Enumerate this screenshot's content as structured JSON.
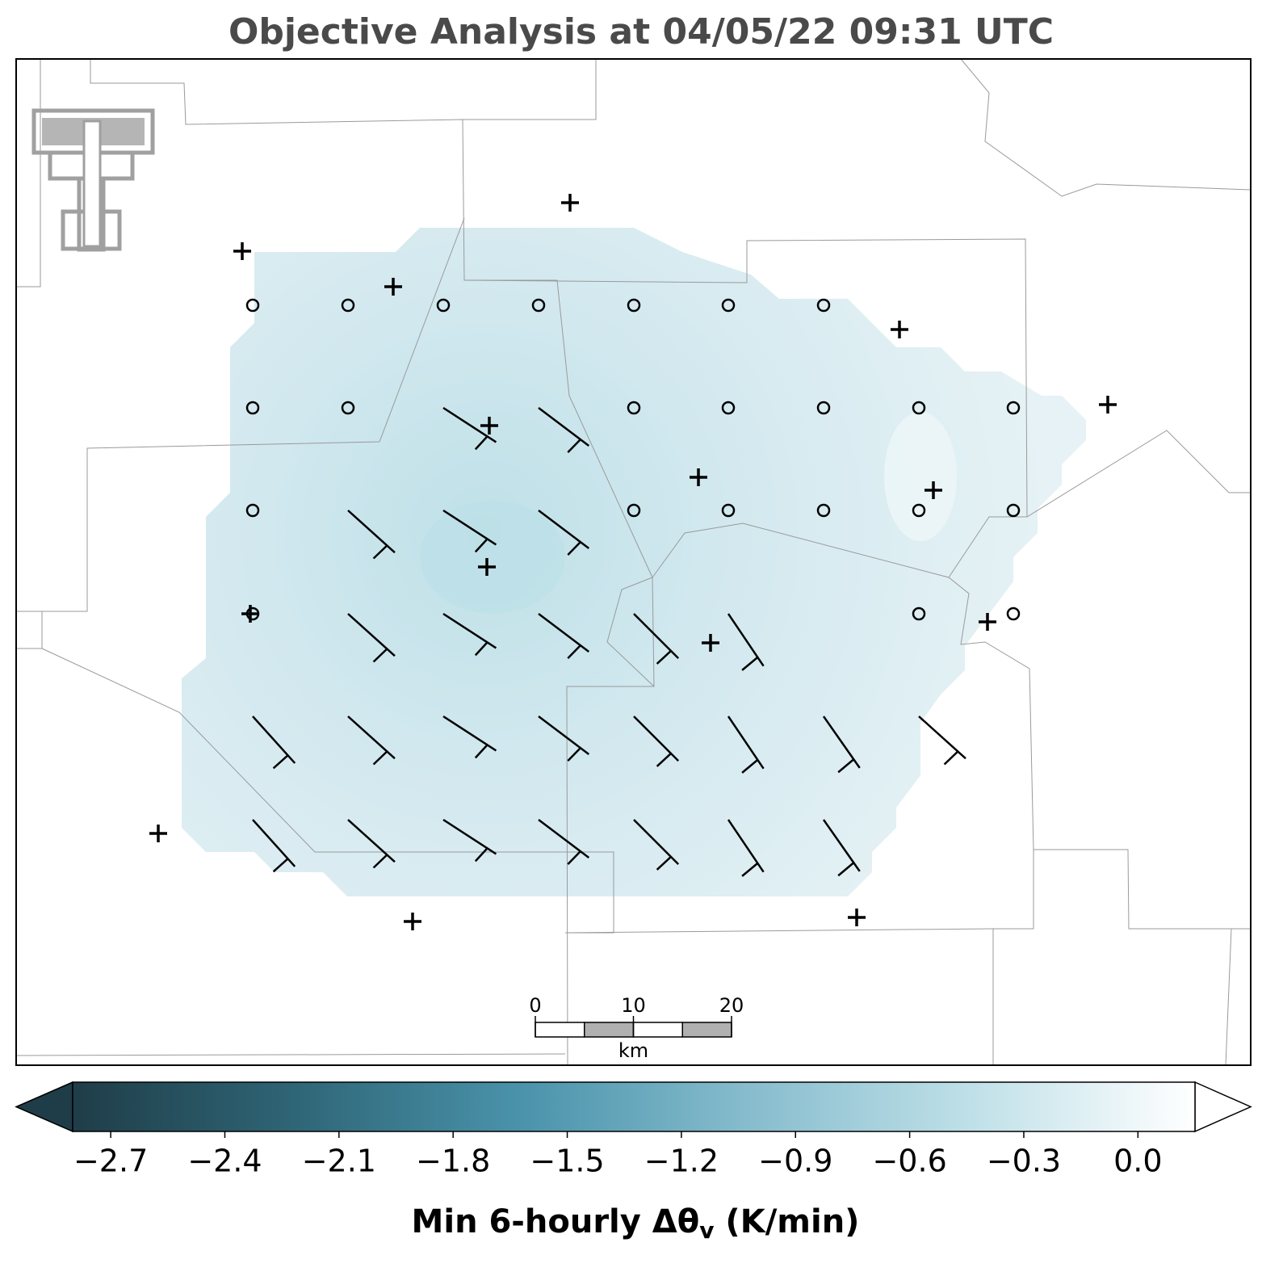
{
  "title": "Objective Analysis at 04/05/22 09:31 UTC",
  "colorbar": {
    "lim": [
      -2.8,
      0.15
    ],
    "colors": [
      "#1f3d48",
      "#2f6677",
      "#4a93ab",
      "#86bccd",
      "#bfe0e8",
      "#ffffff"
    ],
    "ticks": [
      {
        "value": -2.7,
        "label": "−2.7"
      },
      {
        "value": -2.4,
        "label": "−2.4"
      },
      {
        "value": -2.1,
        "label": "−2.1"
      },
      {
        "value": -1.8,
        "label": "−1.8"
      },
      {
        "value": -1.5,
        "label": "−1.5"
      },
      {
        "value": -1.2,
        "label": "−1.2"
      },
      {
        "value": -0.9,
        "label": "−0.9"
      },
      {
        "value": -0.6,
        "label": "−0.6"
      },
      {
        "value": -0.3,
        "label": "−0.3"
      },
      {
        "value": 0,
        "label": "0.0"
      }
    ],
    "label": {
      "main": "Min 6-hourly Δθ",
      "sub": "v",
      "unit": " (K/min)"
    }
  },
  "scale_bar": {
    "ticks": [
      0,
      10,
      20
    ],
    "unit": "km"
  }
}
